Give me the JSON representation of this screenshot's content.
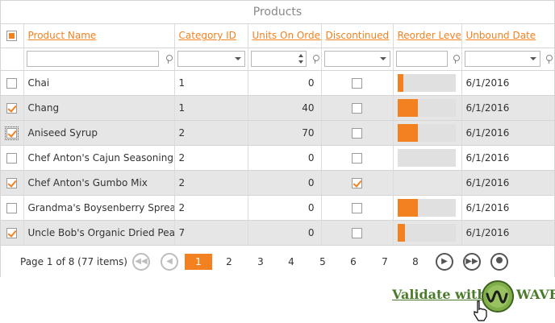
{
  "grid": {
    "title": "Products",
    "columns": [
      "Product Name",
      "Category ID",
      "Units On Order",
      "Discontinued",
      "Reorder Level",
      "Unbound Date"
    ],
    "rows": [
      {
        "checked": false,
        "name": "Chai",
        "category": "1",
        "units": "0",
        "discontinued": false,
        "reorder_level": 0.1,
        "date": "6/1/2016"
      },
      {
        "checked": true,
        "name": "Chang",
        "category": "1",
        "units": "40",
        "discontinued": false,
        "reorder_level": 0.36,
        "date": "6/1/2016"
      },
      {
        "checked": true,
        "name": "Aniseed Syrup",
        "category": "2",
        "units": "70",
        "discontinued": false,
        "reorder_level": 0.36,
        "date": "6/1/2016"
      },
      {
        "checked": false,
        "name": "Chef Anton's Cajun Seasoning",
        "category": "2",
        "units": "0",
        "discontinued": false,
        "reorder_level": 0,
        "date": "6/1/2016"
      },
      {
        "checked": true,
        "name": "Chef Anton's Gumbo Mix",
        "category": "2",
        "units": "0",
        "discontinued": true,
        "reorder_level": null,
        "date": "6/1/2016"
      },
      {
        "checked": false,
        "name": "Grandma's Boysenberry Spread",
        "category": "2",
        "units": "0",
        "discontinued": false,
        "reorder_level": 0.36,
        "date": "6/1/2016"
      },
      {
        "checked": true,
        "name": "Uncle Bob's Organic Dried Pears",
        "category": "7",
        "units": "0",
        "discontinued": false,
        "reorder_level": 0.13,
        "date": "6/1/2016"
      }
    ]
  },
  "pager": {
    "info": "Page 1 of 8 (77 items)",
    "pages": [
      "1",
      "2",
      "3",
      "4",
      "5",
      "6",
      "7",
      "8"
    ],
    "current": "1"
  },
  "wave": {
    "text_left": "Validate with",
    "text_right": "WAVE"
  },
  "colors": {
    "accent": "#f4811f",
    "alt_row": "#e6e6e6",
    "wave_green": "#4a7a2a"
  }
}
